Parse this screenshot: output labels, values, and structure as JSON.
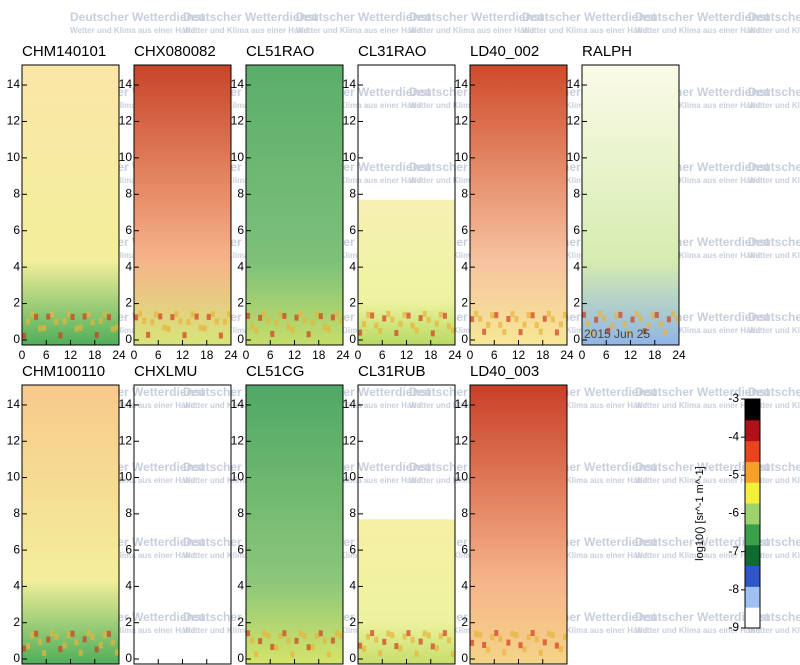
{
  "chart_data": {
    "type": "heatmap-grid",
    "watermark": [
      "Deutscher Wetterdienst",
      "Wetter und Klima aus einer Hand"
    ],
    "xlim": [
      0,
      24
    ],
    "xticks": [
      0,
      6,
      12,
      18,
      24
    ],
    "ylim": [
      0,
      15.1
    ],
    "yticks": [
      0,
      2,
      4,
      6,
      8,
      10,
      12,
      14
    ],
    "annotation": "2015 Jun 25",
    "panels": [
      {
        "title": "CHM140101",
        "colors": [
          "#fbe6a8",
          "#f3ef9a",
          "#4fae5a"
        ],
        "ceiling": 15.1
      },
      {
        "title": "CHX080082",
        "colors": [
          "#c8442a",
          "#f6b48a",
          "#d7e57a"
        ],
        "ceiling": 15.1
      },
      {
        "title": "CL51RAO",
        "colors": [
          "#5aae6a",
          "#7dc07a",
          "#c6de6a"
        ],
        "ceiling": 15.1
      },
      {
        "title": "CL31RAO",
        "colors": [
          "#f6f1b4",
          "#eef2a0",
          "#b7da62"
        ],
        "ceiling": 7.7
      },
      {
        "title": "LD40_002",
        "colors": [
          "#cf4a2a",
          "#f7c3a0",
          "#f6e896"
        ],
        "ceiling": 15.1
      },
      {
        "title": "RALPH",
        "colors": [
          "#fbfbe8",
          "#d6ecb0",
          "#8fb5e4"
        ],
        "ceiling": 15.1
      },
      {
        "title": "CHM100110",
        "colors": [
          "#f8c98c",
          "#f3ef9a",
          "#4fae5a"
        ],
        "ceiling": 15.1
      },
      {
        "title": "CHXLMU",
        "colors": null,
        "ceiling": null
      },
      {
        "title": "CL51CG",
        "colors": [
          "#4fa865",
          "#8cc67a",
          "#d4e46a"
        ],
        "ceiling": 15.1
      },
      {
        "title": "CL31RUB",
        "colors": [
          "#f6f0a4",
          "#eef2a0",
          "#c6de6a"
        ],
        "ceiling": 7.7
      },
      {
        "title": "LD40_003",
        "colors": [
          "#c93f28",
          "#f6b48a",
          "#f4d488"
        ],
        "ceiling": 15.1
      }
    ],
    "colorbar": {
      "label": "log10() [sr^-1 m^-1]",
      "lim": [
        -9,
        -3
      ],
      "ticks": [
        -3,
        -4,
        -5,
        -6,
        -7,
        -8,
        -9
      ],
      "colors": [
        "#ffffff",
        "#9ec1f2",
        "#2f55c8",
        "#0e6d2e",
        "#3aa04a",
        "#9ed26a",
        "#f4ef3c",
        "#f7a12a",
        "#e8451e",
        "#b0101a",
        "#000000"
      ]
    }
  }
}
